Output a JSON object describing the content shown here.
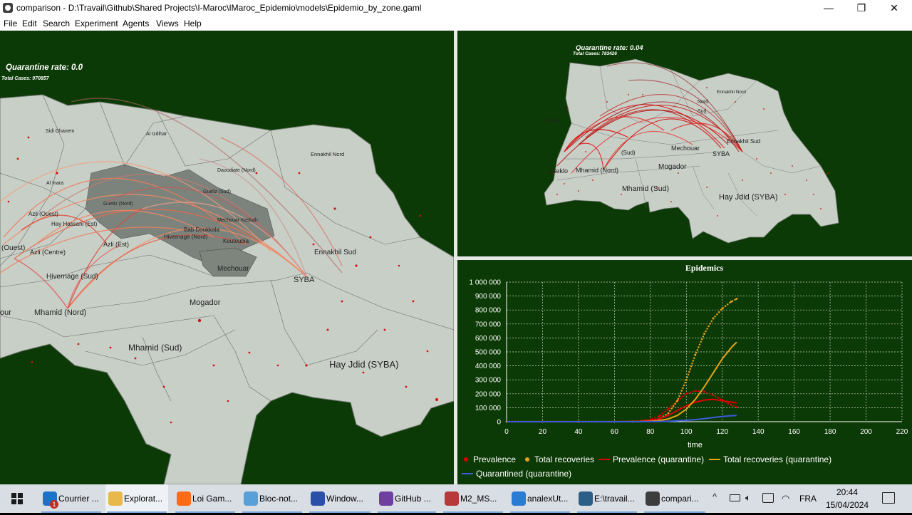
{
  "window": {
    "title": "comparison - D:\\Travail\\Github\\Shared Projects\\I-Maroc\\IMaroc_Epidemio\\models\\Epidemio_by_zone.gaml",
    "controls": [
      "—",
      "❐",
      "✕"
    ]
  },
  "menu": [
    "File",
    "Edit",
    "Search",
    "Experiment",
    "Agents",
    "Views",
    "Help"
  ],
  "views": {
    "left": {
      "quarantine_label": "Quarantine rate: 0.0",
      "cases_label": "Total Cases: 970857",
      "zones": [
        "Sidi Ghanem",
        "Al Izdihar",
        "Ennakhil Nord",
        "Al Inara",
        "Gueliz (Nord)",
        "Daoudiate (Nord)",
        "Hay Hassani (Est)",
        "Gueliz (Sud)",
        "Bab Doukkala",
        "Mechouar Kasbah",
        "Azli (Ouest)",
        "Hivernage (Nord)",
        "Koutoubia",
        "Azli (Centre)",
        "Azli (Est)",
        "Ennakhil Sud",
        "Mechouar",
        "Hivernage (Sud)",
        "SYBA",
        "Mhamid (Nord)",
        "Mogador",
        "Mhamid (Sud)",
        "Hay Jdid (SYBA)",
        "our",
        "(Ouest)"
      ]
    },
    "right": {
      "quarantine_label": "Quarantine rate: 0.04",
      "cases_label": "Total Cases: 783426",
      "zones": [
        "Ennakhil Nord",
        "Al Inara",
        "(Sud)",
        "Mechouar",
        "Ennakhil Sud",
        "SYBA",
        "Aseklo",
        "Mhamid (Nord)",
        "Mogador",
        "Mhamid (Sud)",
        "Hay Jdid (SYBA)",
        "Sud",
        "Nord"
      ]
    }
  },
  "chart_data": {
    "type": "line",
    "title": "Epidemics",
    "xlabel": "time",
    "ylabel": "",
    "xlim": [
      0,
      220
    ],
    "ylim": [
      0,
      1000000
    ],
    "x_ticks": [
      "0",
      "20",
      "40",
      "60",
      "80",
      "100",
      "120",
      "140",
      "160",
      "180",
      "200",
      "220"
    ],
    "y_ticks": [
      "0",
      "100 000",
      "200 000",
      "300 000",
      "400 000",
      "500 000",
      "600 000",
      "700 000",
      "800 000",
      "900 000",
      "1 000 000"
    ],
    "x": [
      0,
      20,
      40,
      60,
      70,
      75,
      80,
      85,
      90,
      95,
      100,
      105,
      110,
      115,
      120,
      125,
      128
    ],
    "grid": true,
    "legend_position": "bottom",
    "series": [
      {
        "name": "Prevalence",
        "color": "#e00000",
        "style": "dotted",
        "values": [
          0,
          0,
          0,
          0,
          2000,
          5000,
          15000,
          40000,
          90000,
          150000,
          200000,
          220000,
          215000,
          190000,
          155000,
          120000,
          105000
        ]
      },
      {
        "name": "Total recoveries",
        "color": "#e8a317",
        "style": "dotted",
        "values": [
          0,
          0,
          0,
          0,
          500,
          2000,
          6000,
          20000,
          60000,
          150000,
          300000,
          480000,
          630000,
          740000,
          810000,
          860000,
          880000
        ]
      },
      {
        "name": "Prevalence (quarantine)",
        "color": "#e00000",
        "style": "solid",
        "values": [
          0,
          0,
          0,
          0,
          1000,
          3000,
          8000,
          20000,
          45000,
          80000,
          115000,
          140000,
          155000,
          160000,
          150000,
          140000,
          135000
        ]
      },
      {
        "name": "Total recoveries (quarantine)",
        "color": "#e8a317",
        "style": "solid",
        "values": [
          0,
          0,
          0,
          0,
          300,
          1000,
          3000,
          8000,
          20000,
          45000,
          90000,
          160000,
          250000,
          350000,
          450000,
          530000,
          570000
        ]
      },
      {
        "name": "Quarantined (quarantine)",
        "color": "#3b5bdb",
        "style": "solid",
        "values": [
          0,
          0,
          0,
          0,
          0,
          200,
          600,
          1500,
          3000,
          6000,
          10000,
          15000,
          22000,
          30000,
          37000,
          43000,
          45000
        ]
      }
    ]
  },
  "taskbar": {
    "items": [
      {
        "label": "Courrier ...",
        "color": "#1a73c8",
        "badge": "1"
      },
      {
        "label": "Explorat...",
        "color": "#e8b84a",
        "active": true
      },
      {
        "label": "Loi Gam...",
        "color": "#ff6a14"
      },
      {
        "label": "Bloc-not...",
        "color": "#5aa0d8"
      },
      {
        "label": "Window...",
        "color": "#2b4fa8"
      },
      {
        "label": "GitHub ...",
        "color": "#6e3fa0"
      },
      {
        "label": "M2_MS...",
        "color": "#b63a3a"
      },
      {
        "label": "analexUt...",
        "color": "#2a7bd4"
      },
      {
        "label": "E:\\travail...",
        "color": "#2b5f87"
      },
      {
        "label": "compari...",
        "color": "#3d3d3d"
      }
    ],
    "tray": {
      "language": "FRA",
      "time": "20:44",
      "date": "15/04/2024"
    }
  }
}
